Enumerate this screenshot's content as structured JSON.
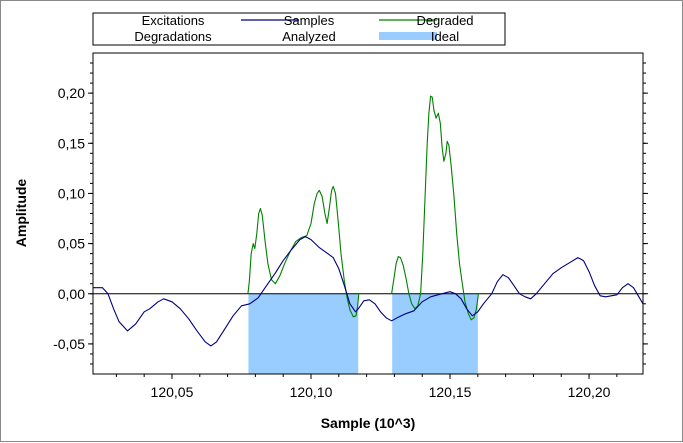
{
  "chart_data": {
    "type": "line",
    "xlabel": "Sample (10^3)",
    "ylabel": "Amplitude",
    "xlim": [
      120.0216,
      120.2194
    ],
    "ylim": [
      -0.08,
      0.24
    ],
    "x_ticks": [
      {
        "value": 120.05,
        "label": "120,05"
      },
      {
        "value": 120.1,
        "label": "120,10"
      },
      {
        "value": 120.15,
        "label": "120,15"
      },
      {
        "value": 120.2,
        "label": "120,20"
      }
    ],
    "y_ticks": [
      {
        "value": 0.2,
        "label": "0,20"
      },
      {
        "value": 0.15,
        "label": "0,15"
      },
      {
        "value": 0.1,
        "label": "0,10"
      },
      {
        "value": 0.05,
        "label": "0,05"
      },
      {
        "value": 0.0,
        "label": "0,00"
      },
      {
        "value": -0.05,
        "label": "-0,05"
      }
    ],
    "grid": false,
    "legend_position": "top",
    "legend": [
      {
        "label": "Excitations",
        "style": "none",
        "color": ""
      },
      {
        "label": "Samples",
        "style": "line",
        "color": "#000080"
      },
      {
        "label": "Degraded",
        "style": "line",
        "color": "#008000"
      },
      {
        "label": "Degradations",
        "style": "none",
        "color": ""
      },
      {
        "label": "Analyzed",
        "style": "none",
        "color": ""
      },
      {
        "label": "Ideal",
        "style": "fill",
        "color": "#99ccff"
      }
    ],
    "series": [
      {
        "name": "Samples",
        "color": "#000080",
        "points": [
          [
            120.0216,
            0.006
          ],
          [
            120.025,
            0.006
          ],
          [
            120.027,
            0.0
          ],
          [
            120.029,
            -0.015
          ],
          [
            120.031,
            -0.028
          ],
          [
            120.034,
            -0.037
          ],
          [
            120.037,
            -0.03
          ],
          [
            120.04,
            -0.018
          ],
          [
            120.042,
            -0.015
          ],
          [
            120.045,
            -0.008
          ],
          [
            120.047,
            -0.005
          ],
          [
            120.05,
            -0.008
          ],
          [
            120.053,
            -0.015
          ],
          [
            120.056,
            -0.025
          ],
          [
            120.059,
            -0.037
          ],
          [
            120.062,
            -0.048
          ],
          [
            120.064,
            -0.052
          ],
          [
            120.066,
            -0.048
          ],
          [
            120.069,
            -0.035
          ],
          [
            120.072,
            -0.022
          ],
          [
            120.075,
            -0.012
          ],
          [
            120.078,
            -0.01
          ],
          [
            120.081,
            -0.004
          ],
          [
            120.084,
            0.008
          ],
          [
            120.087,
            0.02
          ],
          [
            120.09,
            0.033
          ],
          [
            120.093,
            0.044
          ],
          [
            120.096,
            0.054
          ],
          [
            120.098,
            0.057
          ],
          [
            120.1,
            0.054
          ],
          [
            120.103,
            0.046
          ],
          [
            120.106,
            0.04
          ],
          [
            120.108,
            0.036
          ],
          [
            120.11,
            0.025
          ],
          [
            120.112,
            0.008
          ],
          [
            120.114,
            -0.01
          ],
          [
            120.116,
            -0.018
          ],
          [
            120.117,
            -0.015
          ],
          [
            120.119,
            -0.007
          ],
          [
            120.121,
            -0.006
          ],
          [
            120.123,
            -0.01
          ],
          [
            120.125,
            -0.018
          ],
          [
            120.127,
            -0.024
          ],
          [
            120.129,
            -0.027
          ],
          [
            120.131,
            -0.024
          ],
          [
            120.134,
            -0.02
          ],
          [
            120.137,
            -0.017
          ],
          [
            120.14,
            -0.008
          ],
          [
            120.143,
            -0.003
          ],
          [
            120.147,
            0.0
          ],
          [
            120.15,
            0.002
          ],
          [
            120.152,
            0.0
          ],
          [
            120.154,
            -0.005
          ],
          [
            120.156,
            -0.015
          ],
          [
            120.158,
            -0.022
          ],
          [
            120.16,
            -0.018
          ],
          [
            120.162,
            -0.01
          ],
          [
            120.165,
            0.0
          ],
          [
            120.167,
            0.012
          ],
          [
            120.169,
            0.019
          ],
          [
            120.171,
            0.016
          ],
          [
            120.173,
            0.008
          ],
          [
            120.175,
            0.0
          ],
          [
            120.177,
            -0.003
          ],
          [
            120.179,
            -0.005
          ],
          [
            120.181,
            0.0
          ],
          [
            120.184,
            0.01
          ],
          [
            120.187,
            0.02
          ],
          [
            120.19,
            0.026
          ],
          [
            120.193,
            0.031
          ],
          [
            120.196,
            0.036
          ],
          [
            120.198,
            0.033
          ],
          [
            120.2,
            0.022
          ],
          [
            120.202,
            0.008
          ],
          [
            120.204,
            -0.002
          ],
          [
            120.206,
            -0.003
          ],
          [
            120.208,
            -0.002
          ],
          [
            120.21,
            -0.001
          ],
          [
            120.212,
            0.006
          ],
          [
            120.214,
            0.01
          ],
          [
            120.216,
            0.006
          ],
          [
            120.2194,
            -0.01
          ]
        ]
      },
      {
        "name": "Degraded",
        "color": "#008000",
        "points": [
          [
            120.0773,
            0.0
          ],
          [
            120.0778,
            0.012
          ],
          [
            120.0785,
            0.04
          ],
          [
            120.0792,
            0.05
          ],
          [
            120.0798,
            0.045
          ],
          [
            120.0805,
            0.06
          ],
          [
            120.0812,
            0.08
          ],
          [
            120.0818,
            0.085
          ],
          [
            120.0825,
            0.078
          ],
          [
            120.0835,
            0.052
          ],
          [
            120.0845,
            0.03
          ],
          [
            120.0858,
            0.014
          ],
          [
            120.0872,
            0.01
          ],
          [
            120.0888,
            0.018
          ],
          [
            120.0905,
            0.03
          ],
          [
            120.0925,
            0.042
          ],
          [
            120.0945,
            0.052
          ],
          [
            120.0965,
            0.056
          ],
          [
            120.0985,
            0.058
          ],
          [
            120.1,
            0.07
          ],
          [
            120.1012,
            0.09
          ],
          [
            120.1022,
            0.1
          ],
          [
            120.103,
            0.103
          ],
          [
            120.104,
            0.097
          ],
          [
            120.105,
            0.08
          ],
          [
            120.1058,
            0.07
          ],
          [
            120.1066,
            0.085
          ],
          [
            120.1074,
            0.103
          ],
          [
            120.108,
            0.107
          ],
          [
            120.1088,
            0.1
          ],
          [
            120.1098,
            0.072
          ],
          [
            120.1108,
            0.04
          ],
          [
            120.112,
            0.012
          ],
          [
            120.113,
            -0.004
          ],
          [
            120.114,
            -0.016
          ],
          [
            120.1152,
            -0.023
          ],
          [
            120.1162,
            -0.022
          ],
          [
            120.1168,
            -0.012
          ],
          [
            120.1172,
            0.0
          ]
        ]
      },
      {
        "name": "Degraded",
        "color": "#008000",
        "points": [
          [
            120.129,
            0.0
          ],
          [
            120.1298,
            0.015
          ],
          [
            120.1306,
            0.03
          ],
          [
            120.1314,
            0.037
          ],
          [
            120.1322,
            0.036
          ],
          [
            120.1332,
            0.028
          ],
          [
            120.1342,
            0.015
          ],
          [
            120.1352,
            0.0
          ],
          [
            120.1362,
            -0.01
          ],
          [
            120.1374,
            -0.015
          ],
          [
            120.1384,
            -0.012
          ],
          [
            120.1394,
            0.0
          ],
          [
            120.1402,
            0.04
          ],
          [
            120.141,
            0.095
          ],
          [
            120.1418,
            0.15
          ],
          [
            120.1424,
            0.18
          ],
          [
            120.143,
            0.197
          ],
          [
            120.1436,
            0.196
          ],
          [
            120.1442,
            0.183
          ],
          [
            120.145,
            0.175
          ],
          [
            120.1458,
            0.18
          ],
          [
            120.1465,
            0.17
          ],
          [
            120.1472,
            0.145
          ],
          [
            120.1478,
            0.132
          ],
          [
            120.1485,
            0.14
          ],
          [
            120.149,
            0.152
          ],
          [
            120.1496,
            0.148
          ],
          [
            120.1504,
            0.128
          ],
          [
            120.1514,
            0.098
          ],
          [
            120.1524,
            0.06
          ],
          [
            120.1534,
            0.03
          ],
          [
            120.1544,
            0.01
          ],
          [
            120.1554,
            -0.008
          ],
          [
            120.1566,
            -0.02
          ],
          [
            120.1576,
            -0.026
          ],
          [
            120.1586,
            -0.024
          ],
          [
            120.1594,
            -0.016
          ],
          [
            120.16,
            -0.005
          ],
          [
            120.1602,
            0.0
          ]
        ]
      }
    ],
    "ideal_regions": [
      {
        "x0": 120.0775,
        "x1": 120.117,
        "y": -0.08
      },
      {
        "x0": 120.1292,
        "x1": 120.16,
        "y": -0.08
      }
    ],
    "reference_line": {
      "y": 0.0,
      "color": "#000000"
    }
  }
}
